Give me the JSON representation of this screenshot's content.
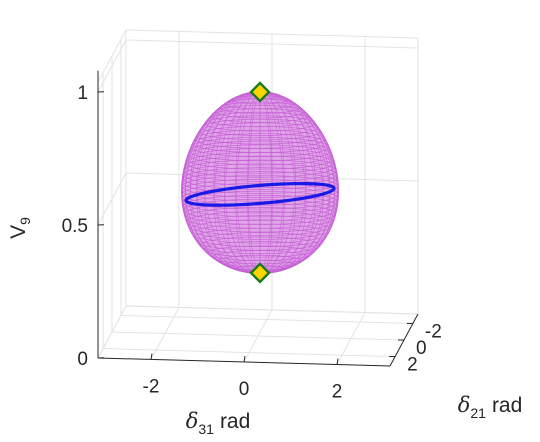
{
  "chart_data": {
    "type": "surface3d",
    "title": "",
    "xlabel": {
      "symbol": "δ",
      "subscript": "31",
      "unit": "rad"
    },
    "ylabel": {
      "symbol": "δ",
      "subscript": "21",
      "unit": "rad"
    },
    "zlabel": {
      "symbol": "V",
      "subscript": "9"
    },
    "x_ticks": [
      -2,
      0,
      2
    ],
    "y_ticks": [
      -2,
      0,
      2
    ],
    "z_ticks": [
      0,
      0.5,
      1
    ],
    "xlim": [
      -3.14,
      3.14
    ],
    "ylim": [
      -3.14,
      3.14
    ],
    "zlim": [
      0,
      1.08
    ],
    "grid": true,
    "surface": {
      "shape": "ellipsoid",
      "z_top": 1.0,
      "z_bottom": 0.32,
      "color": "#c75fd6"
    },
    "highlight_curve": {
      "z_level": 0.6,
      "color": "#1a1ae6"
    },
    "markers": [
      {
        "z": 1.0,
        "fill": "#ffd400",
        "edge": "#1f7a1f"
      },
      {
        "z": 0.32,
        "fill": "#ffd400",
        "edge": "#1f7a1f"
      }
    ]
  }
}
